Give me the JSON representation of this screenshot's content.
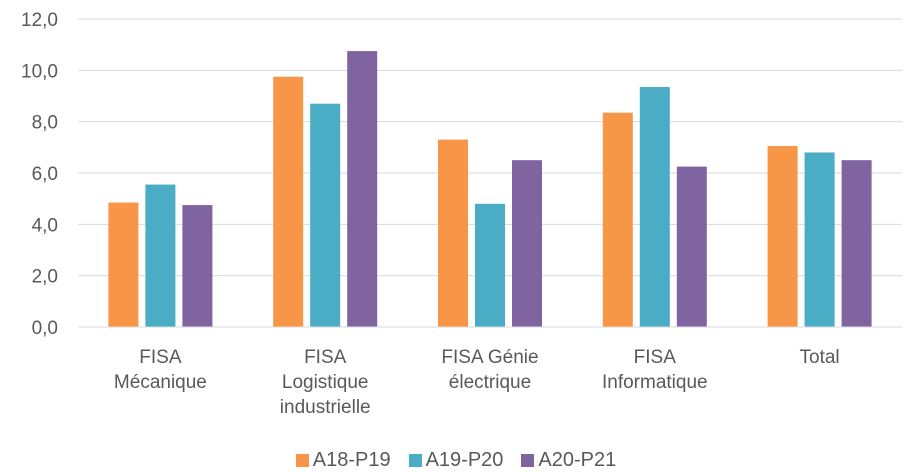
{
  "chart_data": {
    "type": "bar",
    "categories": [
      [
        "FISA",
        "Mécanique"
      ],
      [
        "FISA",
        "Logistique",
        "industrielle"
      ],
      [
        "FISA Génie",
        "électrique"
      ],
      [
        "FISA",
        "Informatique"
      ],
      [
        "Total"
      ]
    ],
    "series": [
      {
        "name": "A18-P19",
        "color": "#F79646",
        "values": [
          4.85,
          9.75,
          7.3,
          8.35,
          7.05
        ]
      },
      {
        "name": "A19-P20",
        "color": "#4BACC6",
        "values": [
          5.55,
          8.7,
          4.8,
          9.35,
          6.8
        ]
      },
      {
        "name": "A20-P21",
        "color": "#8064A2",
        "values": [
          4.75,
          10.75,
          6.5,
          6.25,
          6.5
        ]
      }
    ],
    "yticks": [
      "0,0",
      "2,0",
      "4,0",
      "6,0",
      "8,0",
      "10,0",
      "12,0"
    ],
    "ylim": [
      0,
      12
    ],
    "grid": true,
    "legend_position": "bottom",
    "title": "",
    "xlabel": "",
    "ylabel": ""
  }
}
